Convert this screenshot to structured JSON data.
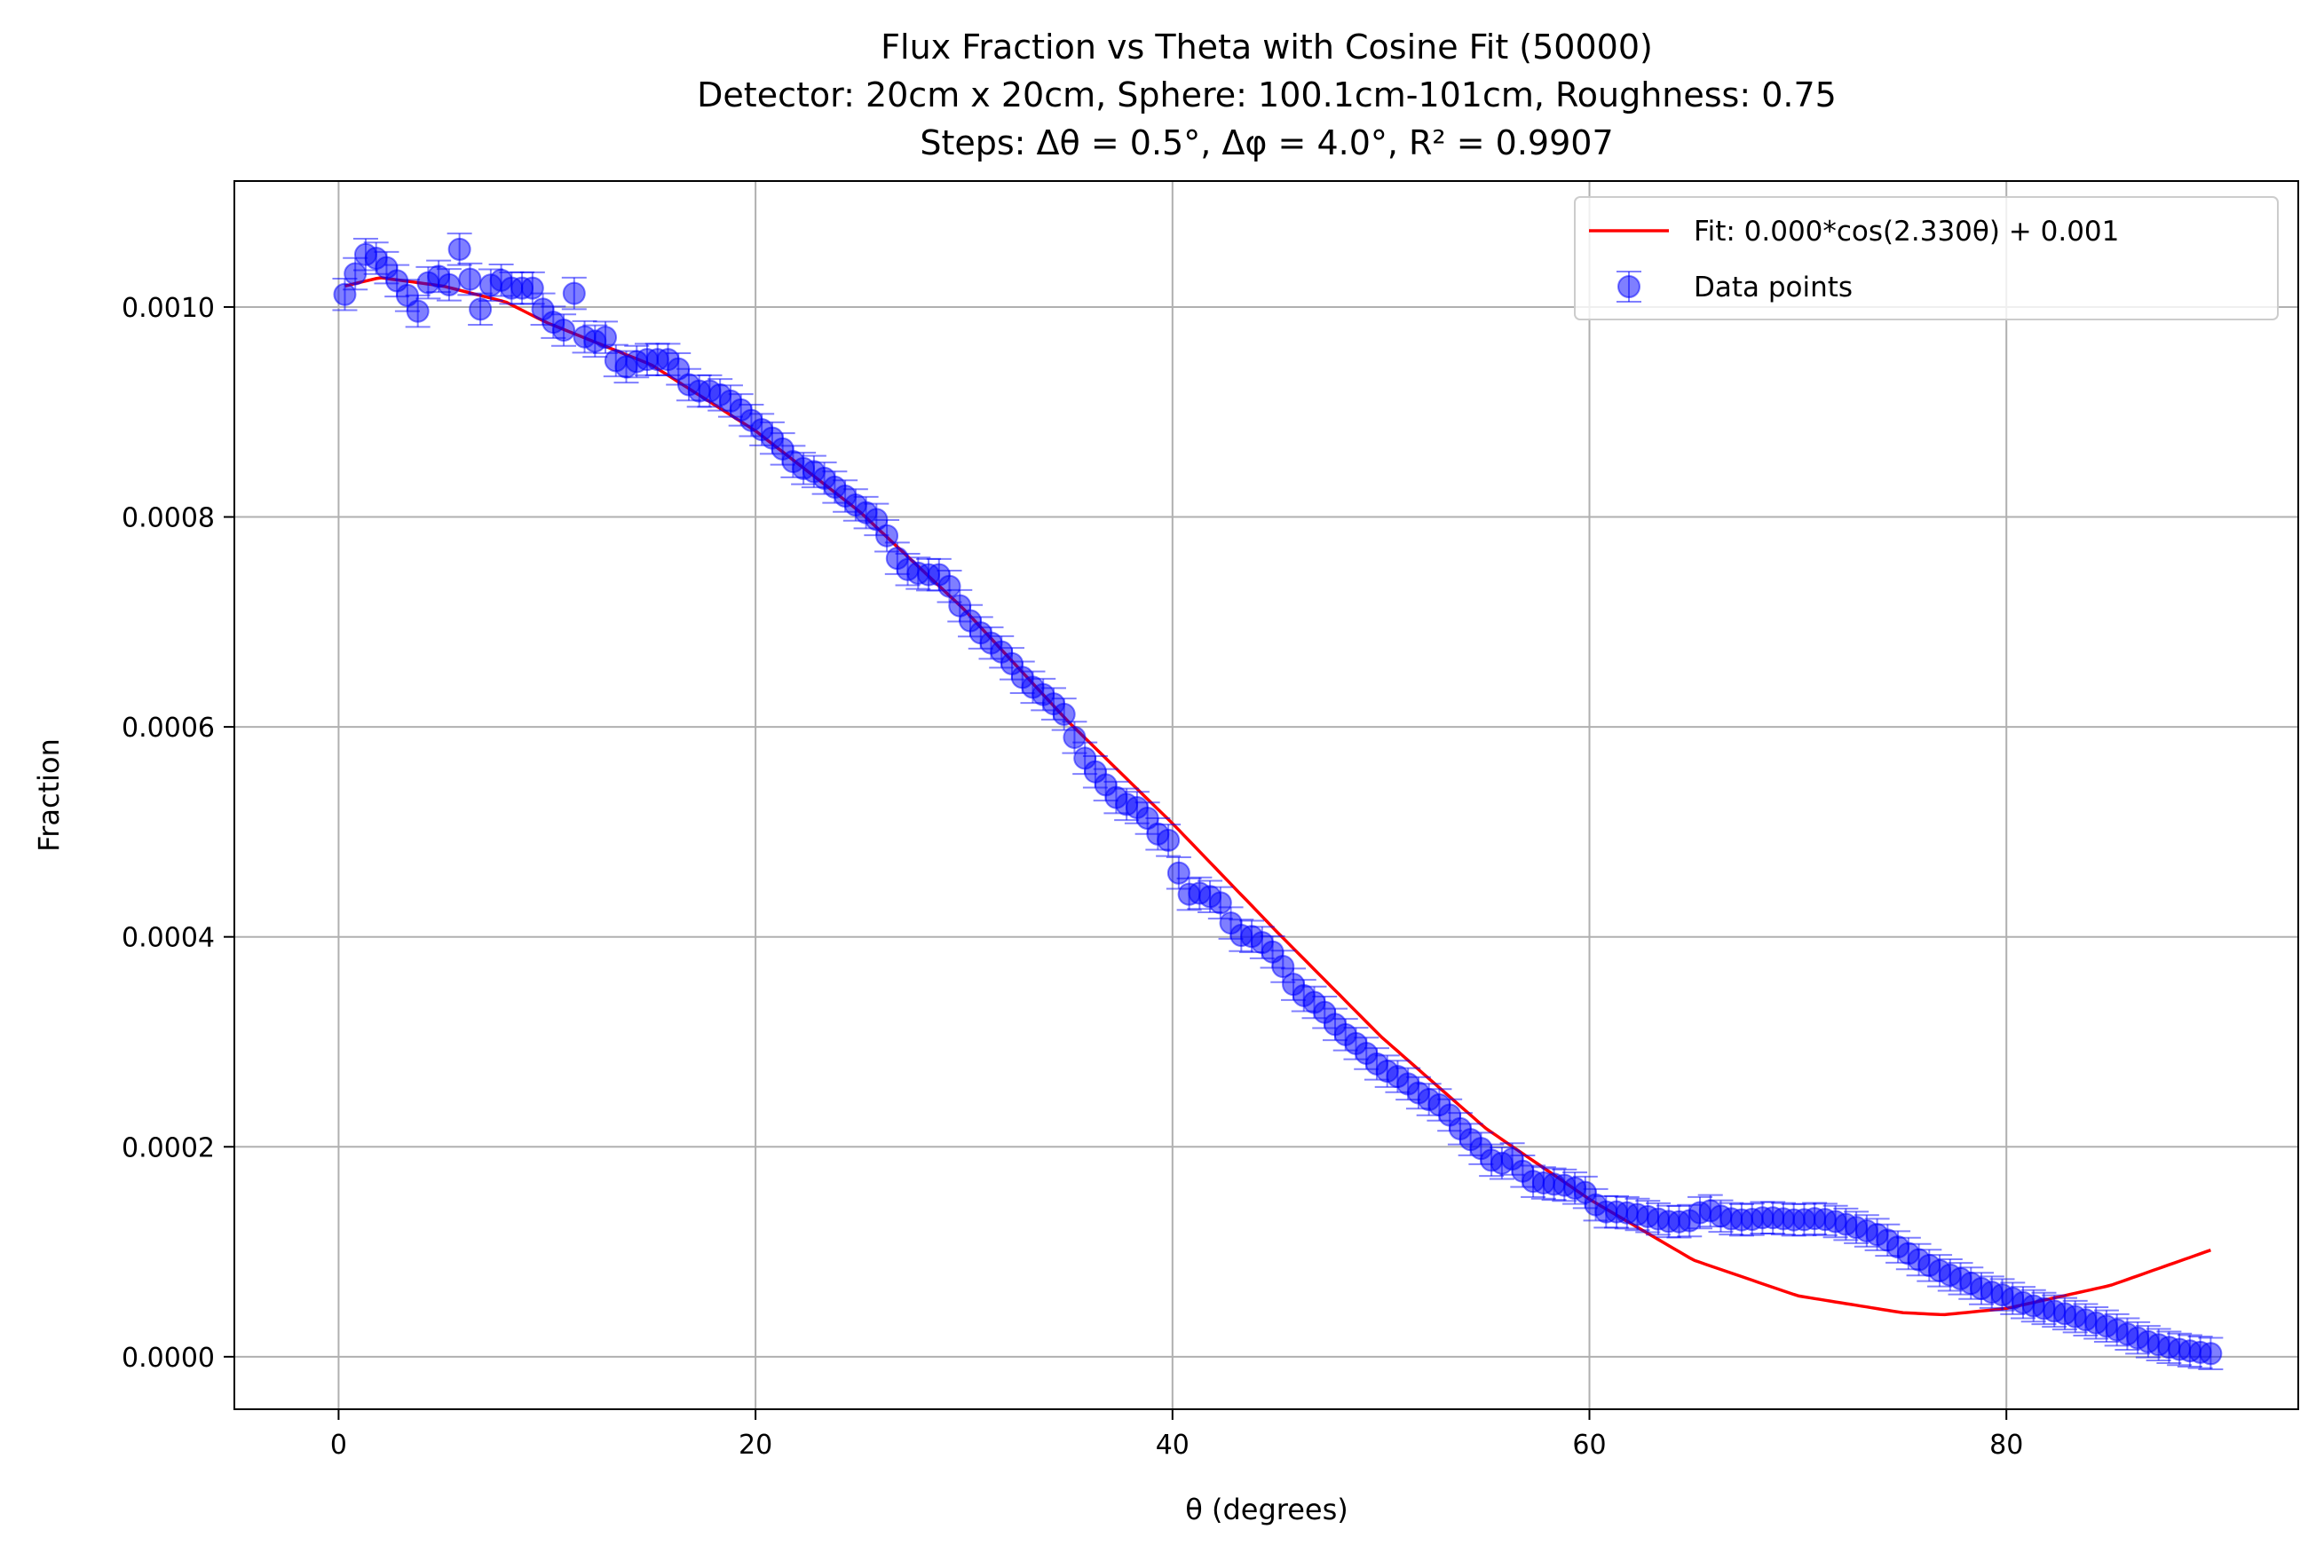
{
  "chart_data": {
    "type": "scatter",
    "title_lines": [
      "Flux Fraction vs Theta with Cosine Fit (50000)",
      "Detector: 20cm x 20cm, Sphere: 100.1cm-101cm, Roughness: 0.75",
      "Steps: Δθ = 0.5°, Δφ = 4.0°, R² = 0.9907"
    ],
    "xlabel": "θ (degrees)",
    "ylabel": "Fraction",
    "xlim": [
      -5,
      94
    ],
    "ylim": [
      -5e-05,
      0.00112
    ],
    "x_ticks": [
      0,
      20,
      40,
      60,
      80
    ],
    "x_tick_labels": [
      "0",
      "20",
      "40",
      "60",
      "80"
    ],
    "y_ticks": [
      0,
      0.0002,
      0.0004,
      0.0006,
      0.0008,
      0.001
    ],
    "y_tick_labels": [
      "0.0000",
      "0.0002",
      "0.0004",
      "0.0006",
      "0.0008",
      "0.0010"
    ],
    "grid": true,
    "legend_position": "top-right",
    "colors": {
      "fit": "#ff0000",
      "data": "#0000ff"
    },
    "series": [
      {
        "name": "Fit: 0.000*cos(2.330θ) + 0.001",
        "kind": "line",
        "x_range": [
          0.3,
          90
        ],
        "anchor_points": [
          [
            0.3,
            0.00102
          ],
          [
            2,
            0.001028
          ],
          [
            5,
            0.00102
          ],
          [
            8,
            0.001005
          ],
          [
            10,
            0.000985
          ],
          [
            15,
            0.000945
          ],
          [
            20,
            0.000882
          ],
          [
            25,
            0.000805
          ],
          [
            30,
            0.000712
          ],
          [
            35,
            0.000605
          ],
          [
            40,
            0.000508
          ],
          [
            45,
            0.000405
          ],
          [
            50,
            0.000305
          ],
          [
            55,
            0.000218
          ],
          [
            60,
            0.00015
          ],
          [
            65,
            9.2e-05
          ],
          [
            70,
            5.8e-05
          ],
          [
            75,
            4.2e-05
          ],
          [
            77,
            4e-05
          ],
          [
            80,
            4.6e-05
          ],
          [
            85,
            6.8e-05
          ],
          [
            90,
            0.000103
          ]
        ]
      },
      {
        "name": "Data points",
        "kind": "errorbar",
        "x_step": 0.5,
        "error": 1.5e-05,
        "anchor_points": [
          [
            0.3,
            0.001012
          ],
          [
            0.7,
            0.001028
          ],
          [
            1.3,
            0.00105
          ],
          [
            2,
            0.001045
          ],
          [
            3,
            0.00102
          ],
          [
            3.8,
            0.000996
          ],
          [
            4.5,
            0.001034
          ],
          [
            5.5,
            0.001018
          ],
          [
            5.8,
            0.001055
          ],
          [
            6.8,
            0.000998
          ],
          [
            7.5,
            0.00103
          ],
          [
            8.5,
            0.001015
          ],
          [
            9.2,
            0.001022
          ],
          [
            10,
            0.00099
          ],
          [
            10.8,
            0.000978
          ],
          [
            11.3,
            0.001013
          ],
          [
            12,
            0.000955
          ],
          [
            12.6,
            0.00098
          ],
          [
            13.5,
            0.00094
          ],
          [
            14.5,
            0.00095
          ],
          [
            16,
            0.00095
          ],
          [
            17,
            0.00092
          ],
          [
            18,
            0.00092
          ],
          [
            19,
            0.000908
          ],
          [
            20,
            0.000888
          ],
          [
            21,
            0.000872
          ],
          [
            22,
            0.000848
          ],
          [
            23,
            0.000842
          ],
          [
            24,
            0.000825
          ],
          [
            25,
            0.000808
          ],
          [
            26,
            0.000795
          ],
          [
            27,
            0.000752
          ],
          [
            28,
            0.000745
          ],
          [
            29,
            0.000745
          ],
          [
            30,
            0.000708
          ],
          [
            31,
            0.000685
          ],
          [
            32,
            0.000668
          ],
          [
            33,
            0.000642
          ],
          [
            34,
            0.000628
          ],
          [
            35,
            0.000608
          ],
          [
            35.5,
            0.000578
          ],
          [
            36.5,
            0.000552
          ],
          [
            37.5,
            0.000528
          ],
          [
            38.5,
            0.000522
          ],
          [
            39.5,
            0.000492
          ],
          [
            40,
            0.000492
          ],
          [
            40.5,
            0.00044
          ],
          [
            41.5,
            0.000442
          ],
          [
            42.5,
            0.00043
          ],
          [
            43,
            0.000402
          ],
          [
            44,
            0.0004
          ],
          [
            45,
            0.000382
          ],
          [
            46,
            0.000348
          ],
          [
            47,
            0.000335
          ],
          [
            48,
            0.000312
          ],
          [
            49,
            0.000295
          ],
          [
            50,
            0.000275
          ],
          [
            51,
            0.000265
          ],
          [
            52,
            0.000248
          ],
          [
            53,
            0.000238
          ],
          [
            54,
            0.000212
          ],
          [
            55,
            0.000195
          ],
          [
            55.5,
            0.000182
          ],
          [
            56.5,
            0.00019
          ],
          [
            57,
            0.000168
          ],
          [
            58,
            0.000165
          ],
          [
            59,
            0.000163
          ],
          [
            60,
            0.000155
          ],
          [
            60.5,
            0.000138
          ],
          [
            61.5,
            0.000138
          ],
          [
            62.5,
            0.000135
          ],
          [
            64,
            0.000128
          ],
          [
            65,
            0.00013
          ],
          [
            65.5,
            0.000142
          ],
          [
            66.5,
            0.000132
          ],
          [
            67.5,
            0.00013
          ],
          [
            68.5,
            0.000133
          ],
          [
            70,
            0.00013
          ],
          [
            71,
            0.000132
          ],
          [
            72,
            0.000128
          ],
          [
            73,
            0.000122
          ],
          [
            74,
            0.000115
          ],
          [
            75,
            0.000102
          ],
          [
            76,
            9e-05
          ],
          [
            77,
            8e-05
          ],
          [
            78,
            7.3e-05
          ],
          [
            79,
            6.3e-05
          ],
          [
            80,
            5.8e-05
          ],
          [
            81,
            5e-05
          ],
          [
            82,
            4.5e-05
          ],
          [
            83,
            4e-05
          ],
          [
            84,
            3.4e-05
          ],
          [
            85,
            2.8e-05
          ],
          [
            86,
            2e-05
          ],
          [
            87,
            1.3e-05
          ],
          [
            88,
            8e-06
          ],
          [
            89,
            5e-06
          ],
          [
            89.8,
            3e-06
          ]
        ]
      }
    ]
  }
}
